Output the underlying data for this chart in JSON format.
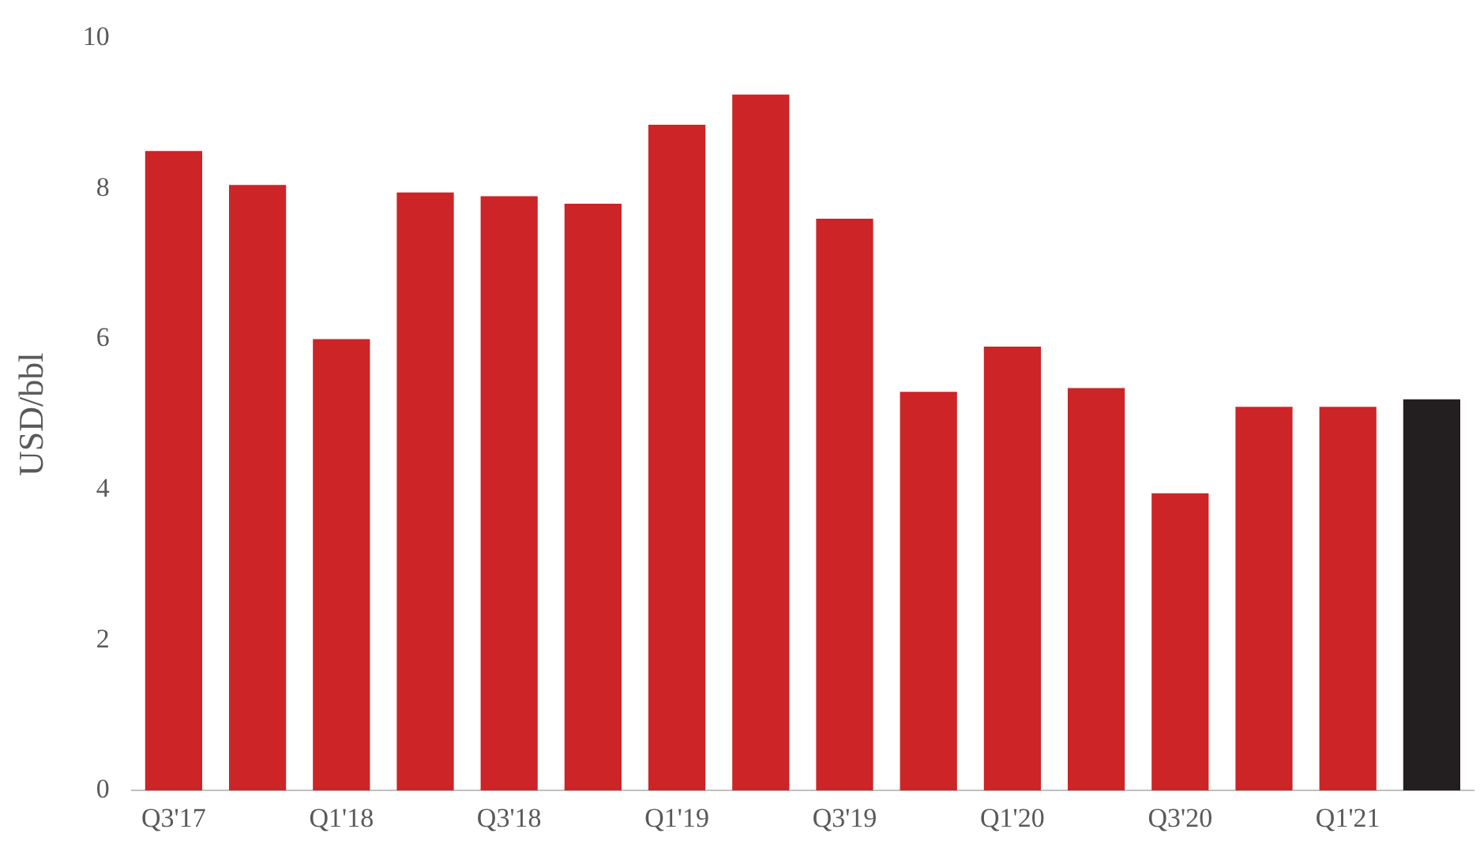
{
  "chart_data": {
    "type": "bar",
    "ylabel": "USD/bbl",
    "categories": [
      "Q3'17",
      null,
      "Q1'18",
      null,
      "Q3'18",
      null,
      "Q1'19",
      null,
      "Q3'19",
      null,
      "Q1'20",
      null,
      "Q3'20",
      null,
      "Q1'21",
      null
    ],
    "values": [
      8.5,
      8.05,
      6.0,
      7.95,
      7.9,
      7.8,
      8.85,
      9.25,
      7.6,
      5.3,
      5.9,
      5.35,
      3.95,
      5.1,
      5.1,
      5.2
    ],
    "colors": [
      "#cc2427",
      "#cc2427",
      "#cc2427",
      "#cc2427",
      "#cc2427",
      "#cc2427",
      "#cc2427",
      "#cc2427",
      "#cc2427",
      "#cc2427",
      "#cc2427",
      "#cc2427",
      "#cc2427",
      "#cc2427",
      "#cc2427",
      "#231f20"
    ],
    "ylim": [
      0,
      10
    ],
    "yticks": [
      0,
      2,
      4,
      6,
      8,
      10
    ],
    "grid": false,
    "legend": false
  }
}
